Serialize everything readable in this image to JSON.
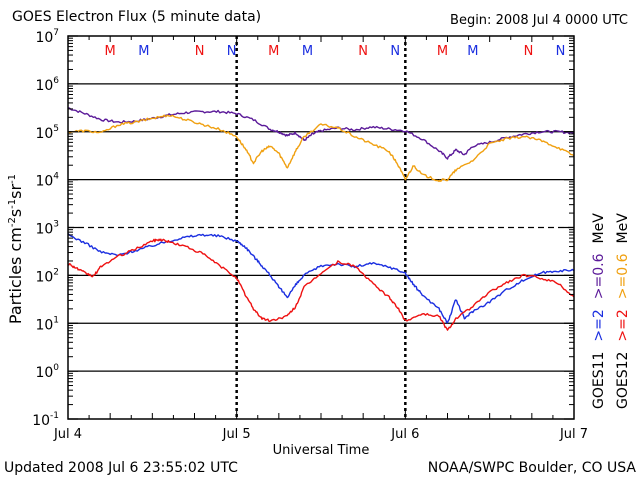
{
  "header": {
    "title": "GOES Electron Flux (5 minute data)",
    "begin": "Begin: 2008 Jul 4 0000 UTC"
  },
  "footer": {
    "updated": "Updated 2008 Jul  6 23:55:02 UTC",
    "credit": "NOAA/SWPC Boulder, CO USA"
  },
  "colors": {
    "red": "#ee1111",
    "blue": "#1a2ee0",
    "purple": "#5b1a99",
    "orange": "#f0a010",
    "black": "#000000"
  },
  "chart_data": {
    "type": "line",
    "title": "GOES Electron Flux (5 minute data)",
    "xlabel": "Universal Time",
    "ylabel": "Particles cm-2 s-1 sr-1",
    "ylabel_parts": {
      "main": "Particles cm",
      "e1": "-2",
      "mid1": "s",
      "e2": "-1",
      "mid2": "sr",
      "e3": "-1"
    },
    "y_scale": "log",
    "ylim_exponent": [
      -1,
      7
    ],
    "y_ticks": [
      {
        "base": "10",
        "exp": "-1"
      },
      {
        "base": "10",
        "exp": "0"
      },
      {
        "base": "10",
        "exp": "1"
      },
      {
        "base": "10",
        "exp": "2"
      },
      {
        "base": "10",
        "exp": "3"
      },
      {
        "base": "10",
        "exp": "4"
      },
      {
        "base": "10",
        "exp": "5"
      },
      {
        "base": "10",
        "exp": "6"
      },
      {
        "base": "10",
        "exp": "7"
      }
    ],
    "xlim_days": [
      0,
      3
    ],
    "x_ticks": [
      {
        "day": 0,
        "label": "Jul 4"
      },
      {
        "day": 1,
        "label": "Jul 5"
      },
      {
        "day": 2,
        "label": "Jul 6"
      },
      {
        "day": 3,
        "label": "Jul 7"
      }
    ],
    "grid_lines_exponent": [
      0,
      1,
      2,
      4,
      5,
      6
    ],
    "dashed_line_exponent": 3,
    "midnight_markers_days": [
      1,
      2
    ],
    "local_noon_markers": [
      {
        "day": 0.25,
        "label": "M",
        "color": "red"
      },
      {
        "day": 0.45,
        "label": "M",
        "color": "blue"
      },
      {
        "day": 0.78,
        "label": "N",
        "color": "red"
      },
      {
        "day": 0.97,
        "label": "N",
        "color": "blue"
      },
      {
        "day": 1.22,
        "label": "M",
        "color": "red"
      },
      {
        "day": 1.42,
        "label": "M",
        "color": "blue"
      },
      {
        "day": 1.75,
        "label": "N",
        "color": "red"
      },
      {
        "day": 1.94,
        "label": "N",
        "color": "blue"
      },
      {
        "day": 2.22,
        "label": "M",
        "color": "red"
      },
      {
        "day": 2.4,
        "label": "M",
        "color": "blue"
      },
      {
        "day": 2.73,
        "label": "N",
        "color": "red"
      },
      {
        "day": 2.92,
        "label": "N",
        "color": "blue"
      }
    ],
    "series": [
      {
        "name": "GOES11 >=0.6 MeV",
        "color": "purple",
        "x": [
          0,
          0.1,
          0.2,
          0.3,
          0.4,
          0.5,
          0.6,
          0.7,
          0.8,
          0.9,
          1.0,
          1.1,
          1.2,
          1.25,
          1.3,
          1.35,
          1.4,
          1.45,
          1.5,
          1.6,
          1.7,
          1.8,
          1.9,
          2.0,
          2.1,
          2.2,
          2.25,
          2.3,
          2.35,
          2.4,
          2.5,
          2.6,
          2.7,
          2.8,
          2.9,
          3.0
        ],
        "y": [
          5.5,
          5.38,
          5.25,
          5.2,
          5.22,
          5.28,
          5.35,
          5.4,
          5.42,
          5.42,
          5.38,
          5.25,
          5.05,
          5.0,
          4.92,
          4.98,
          4.82,
          4.95,
          5.02,
          5.08,
          5.04,
          5.1,
          5.06,
          5.02,
          4.85,
          4.6,
          4.45,
          4.62,
          4.52,
          4.7,
          4.78,
          4.88,
          4.95,
          5.0,
          5.0,
          4.98
        ]
      },
      {
        "name": "GOES12 >=0.6 MeV",
        "color": "orange",
        "x": [
          0,
          0.1,
          0.2,
          0.3,
          0.4,
          0.5,
          0.6,
          0.7,
          0.8,
          0.9,
          1.0,
          1.05,
          1.1,
          1.15,
          1.2,
          1.25,
          1.3,
          1.35,
          1.4,
          1.5,
          1.6,
          1.7,
          1.8,
          1.9,
          1.95,
          2.0,
          2.05,
          2.1,
          2.2,
          2.25,
          2.3,
          2.4,
          2.5,
          2.6,
          2.7,
          2.8,
          2.9,
          3.0
        ],
        "y": [
          5.0,
          5.02,
          4.98,
          5.15,
          5.2,
          5.28,
          5.35,
          5.25,
          5.15,
          5.05,
          4.9,
          4.65,
          4.35,
          4.6,
          4.7,
          4.55,
          4.25,
          4.6,
          4.9,
          5.15,
          5.08,
          4.9,
          4.75,
          4.6,
          4.35,
          4.0,
          4.3,
          4.1,
          3.98,
          4.0,
          4.2,
          4.4,
          4.75,
          4.85,
          4.9,
          4.82,
          4.68,
          4.5
        ]
      },
      {
        "name": "GOES11 >=2 MeV",
        "color": "blue",
        "x": [
          0,
          0.1,
          0.2,
          0.3,
          0.4,
          0.5,
          0.6,
          0.7,
          0.8,
          0.9,
          1.0,
          1.05,
          1.1,
          1.15,
          1.2,
          1.25,
          1.3,
          1.35,
          1.4,
          1.5,
          1.6,
          1.7,
          1.8,
          1.9,
          2.0,
          2.05,
          2.1,
          2.2,
          2.25,
          2.3,
          2.35,
          2.4,
          2.5,
          2.6,
          2.7,
          2.8,
          2.9,
          3.0
        ],
        "y": [
          2.85,
          2.68,
          2.48,
          2.42,
          2.52,
          2.62,
          2.72,
          2.8,
          2.85,
          2.82,
          2.72,
          2.6,
          2.4,
          2.2,
          2.0,
          1.75,
          1.55,
          1.8,
          2.0,
          2.2,
          2.24,
          2.18,
          2.25,
          2.18,
          2.05,
          1.8,
          1.6,
          1.3,
          1.0,
          1.5,
          1.1,
          1.25,
          1.45,
          1.7,
          1.9,
          2.05,
          2.1,
          2.1
        ]
      },
      {
        "name": "GOES12 >=2 MeV",
        "color": "red",
        "x": [
          0,
          0.05,
          0.1,
          0.15,
          0.2,
          0.3,
          0.4,
          0.5,
          0.55,
          0.6,
          0.7,
          0.8,
          0.9,
          1.0,
          1.05,
          1.1,
          1.15,
          1.2,
          1.3,
          1.35,
          1.4,
          1.5,
          1.6,
          1.7,
          1.8,
          1.9,
          1.95,
          2.0,
          2.1,
          2.2,
          2.25,
          2.3,
          2.4,
          2.5,
          2.6,
          2.7,
          2.8,
          2.9,
          3.0
        ],
        "y": [
          2.25,
          2.15,
          2.05,
          1.98,
          2.2,
          2.4,
          2.55,
          2.72,
          2.75,
          2.7,
          2.6,
          2.45,
          2.2,
          1.95,
          1.6,
          1.3,
          1.1,
          1.05,
          1.15,
          1.35,
          1.75,
          2.05,
          2.28,
          2.2,
          1.85,
          1.55,
          1.35,
          1.05,
          1.2,
          1.15,
          0.85,
          1.1,
          1.35,
          1.65,
          1.85,
          2.0,
          1.95,
          1.85,
          1.55
        ]
      }
    ],
    "legend_right": {
      "goes11": "GOES11",
      "goes12": "GOES12",
      "g11_ge2": ">=2",
      "g11_ge06": ">=0.6",
      "g12_ge2": ">=2",
      "g12_ge06": ">=0.6",
      "unit": "MeV"
    }
  }
}
